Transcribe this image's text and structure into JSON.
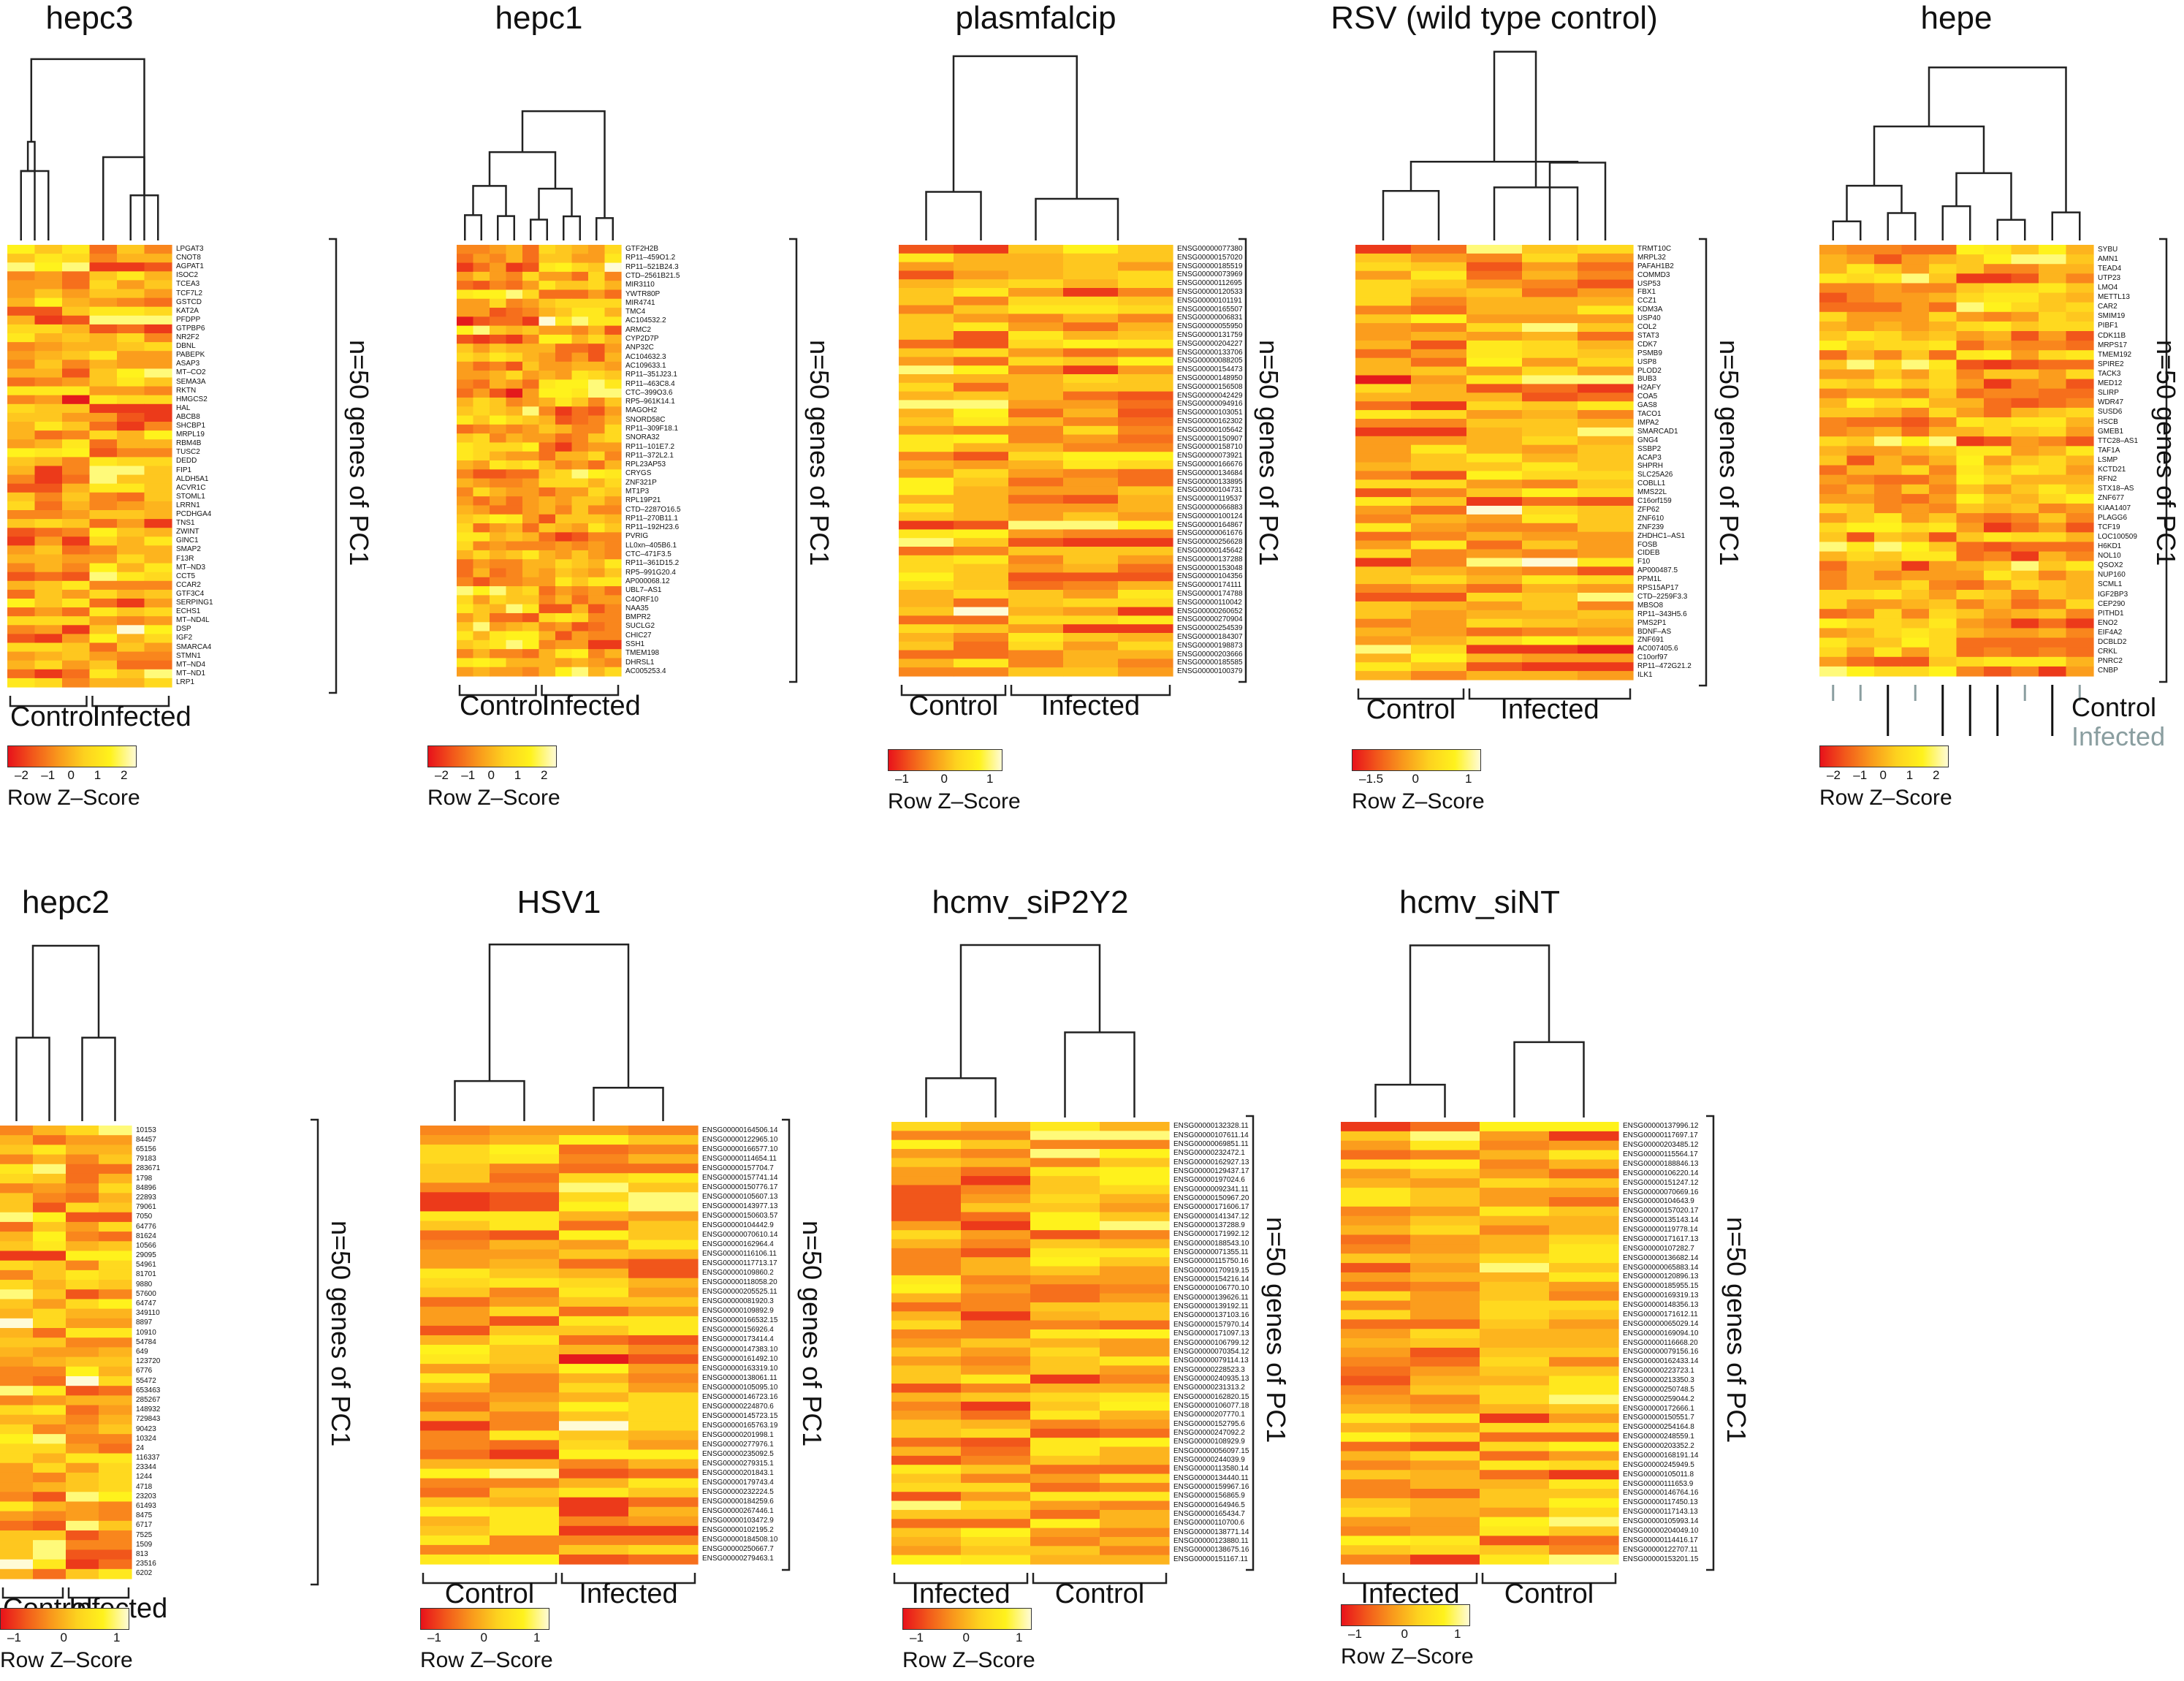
{
  "figure": {
    "legend_label": "Row Z–Score",
    "side_label": "n=50 genes of PC1"
  },
  "chart_data": [
    {
      "type": "heatmap",
      "title": "hepc3",
      "groups": [
        "Control",
        "Infected"
      ],
      "colorbar_ticks": [
        "–2",
        "–1",
        "0",
        "1",
        "2"
      ],
      "genes": [
        "LPGAT3",
        "CNOT8",
        "AGPAT1",
        "ISOC2",
        "TCEA3",
        "TCF7L2",
        "GSTCD",
        "KAT2A",
        "PFDPP",
        "GTPBP6",
        "NR2F2",
        "DBNL",
        "PABEPK",
        "ASAP3",
        "MT–CO2",
        "SEMA3A",
        "RKTN",
        "HMGCS2",
        "HAL",
        "ABCB8",
        "SHCBP1",
        "MRPL19",
        "RBM4B",
        "TUSC2",
        "DEDD",
        "FIP1",
        "ALDH5A1",
        "ACVR1C",
        "STOML1",
        "LRRN1",
        "PCDHGA4",
        "TNS1",
        "ZWINT",
        "GINC1",
        "SMAP2",
        "F13R",
        "MT–ND3",
        "CCT5",
        "CCAR2",
        "GTF3C4",
        "SERPING1",
        "ECHS1",
        "MT–ND4L",
        "DSP",
        "IGF2",
        "SMARCA4",
        "STMN1",
        "MT–ND4",
        "MT–ND1",
        "LRP1"
      ]
    },
    {
      "type": "heatmap",
      "title": "hepc1",
      "groups": [
        "Control",
        "Infected"
      ],
      "colorbar_ticks": [
        "–2",
        "–1",
        "0",
        "1",
        "2"
      ],
      "genes": [
        "GTF2H2B",
        "RP11–459O1.2",
        "RP11–521B24.3",
        "CTD–2561B21.5",
        "MIR3110",
        "YWTR80P",
        "MIR4741",
        "TMC4",
        "AC104532.2",
        "ARMC2",
        "CYP2D7P",
        "ANP32C",
        "AC104632.3",
        "AC109633.1",
        "RP11–351J23.1",
        "RP11–463C8.4",
        "CTC–399O3.6",
        "RP5–961K14.1",
        "MAGOH2",
        "SNORD58C",
        "RP11–309F18.1",
        "SNORA32",
        "RP11–101E7.2",
        "RP11–372L2.1",
        "RPL23AP53",
        "CRYGS",
        "ZNF321P",
        "MT1P3",
        "RPL19P21",
        "CTD–2287O16.5",
        "RP11–270B11.1",
        "RP11–192H23.6",
        "PVRIG",
        "LL0xn–405B6.1",
        "CTC–471F3.5",
        "RP11–361D15.2",
        "RP5–991G20.4",
        "AP000068.12",
        "UBL7–AS1",
        "C4ORF10",
        "NAA35",
        "BMPR2",
        "SUCLG2",
        "CHIC27",
        "SSH1",
        "TMEM198",
        "DHRSL1",
        "AC005253.4"
      ]
    },
    {
      "type": "heatmap",
      "title": "plasmfalcip",
      "groups": [
        "Control",
        "Infected"
      ],
      "colorbar_ticks": [
        "–1",
        "0",
        "1"
      ],
      "genes": [
        "ENSG00000077380",
        "ENSG00000157020",
        "ENSG00000185519",
        "ENSG00000073969",
        "ENSG00000112695",
        "ENSG00000120533",
        "ENSG00000101191",
        "ENSG00000165507",
        "ENSG00000006831",
        "ENSG00000055950",
        "ENSG00000131759",
        "ENSG00000204227",
        "ENSG00000133706",
        "ENSG00000088205",
        "ENSG00000154473",
        "ENSG00000148950",
        "ENSG00000156508",
        "ENSG00000042429",
        "ENSG00000094916",
        "ENSG00000103051",
        "ENSG00000162302",
        "ENSG00000105642",
        "ENSG00000150907",
        "ENSG00000158710",
        "ENSG00000073921",
        "ENSG00000166676",
        "ENSG00000134684",
        "ENSG00000133895",
        "ENSG00000104731",
        "ENSG00000119537",
        "ENSG00000066883",
        "ENSG00000100124",
        "ENSG00000164867",
        "ENSG00000061676",
        "ENSG00000256628",
        "ENSG00000145642",
        "ENSG00000137288",
        "ENSG00000153048",
        "ENSG00000104356",
        "ENSG00000174111",
        "ENSG00000174788",
        "ENSG00000110042",
        "ENSG00000260652",
        "ENSG00000270904",
        "ENSG00000254539",
        "ENSG00000184307",
        "ENSG00000198873",
        "ENSG00000203666",
        "ENSG00000185585",
        "ENSG00000100379"
      ]
    },
    {
      "type": "heatmap",
      "title": "RSV (wild type control)",
      "groups": [
        "Control",
        "Infected"
      ],
      "colorbar_ticks": [
        "–1.5",
        "0",
        "1"
      ],
      "genes": [
        "TRMT10C",
        "MRPL32",
        "PAFAH1B2",
        "COMMD3",
        "USP53",
        "FBX1",
        "CCZ1",
        "KDM3A",
        "USP40",
        "COL2",
        "STAT3",
        "CDK7",
        "PSMB9",
        "USP8",
        "PLOD2",
        "BUB3",
        "H2AFY",
        "COA5",
        "GAS8",
        "TACO1",
        "IMPA2",
        "SMARCAD1",
        "GNG4",
        "SSBP2",
        "ACAP3",
        "SHPRH",
        "SLC25A26",
        "COBLL1",
        "MMS22L",
        "C16orf159",
        "ZFP62",
        "ZNF610",
        "ZNF239",
        "ZHDHC1–AS1",
        "FOSB",
        "CIDEB",
        "F10",
        "AP000487.5",
        "PPM1L",
        "RPS15AP17",
        "CTD–2259F3.3",
        "MBSO8",
        "RP11–343H5.6",
        "PMS2P1",
        "BDNF–AS",
        "ZNF691",
        "AC007405.6",
        "C10orf97",
        "RP11–472G21.2",
        "ILK1"
      ]
    },
    {
      "type": "heatmap",
      "title": "hepe",
      "groups": [
        "Control",
        "Infected"
      ],
      "colorbar_ticks": [
        "–2",
        "–1",
        "0",
        "1",
        "2"
      ],
      "genes": [
        "SYBU",
        "AMN1",
        "TEAD4",
        "UTP23",
        "LMO4",
        "METTL13",
        "CAR2",
        "SMIM19",
        "PIBF1",
        "CDK11B",
        "MRPS17",
        "TMEM192",
        "SPIRE2",
        "TACK3",
        "MED12",
        "SLIRP",
        "WDR47",
        "SUSD6",
        "HSCB",
        "GMEB1",
        "TTC28–AS1",
        "TAF1A",
        "LSMP",
        "KCTD21",
        "RFN2",
        "STX18–AS",
        "ZNF677",
        "KIAA1407",
        "PLAGG6",
        "TCF19",
        "LOC100509",
        "H6KD1",
        "NOL10",
        "QSOX2",
        "NUP160",
        "SCML1",
        "IGF2BP3",
        "CEP290",
        "PITHD1",
        "ENO2",
        "EIF4A2",
        "DCBLD2",
        "CRKL",
        "PNRC2",
        "CNBP"
      ]
    },
    {
      "type": "heatmap",
      "title": "hepc2",
      "groups": [
        "Control",
        "Infected"
      ],
      "colorbar_ticks": [
        "–1",
        "0",
        "1"
      ],
      "genes": [
        "10153",
        "84457",
        "65156",
        "79183",
        "283671",
        "1798",
        "84896",
        "22893",
        "79061",
        "7050",
        "64776",
        "81624",
        "10566",
        "29095",
        "54961",
        "81701",
        "9880",
        "57600",
        "64747",
        "349110",
        "8897",
        "10910",
        "54784",
        "649",
        "123720",
        "6776",
        "55472",
        "653463",
        "285267",
        "148932",
        "729843",
        "90423",
        "10324",
        "24",
        "116337",
        "23344",
        "1244",
        "4718",
        "23203",
        "61493",
        "8475",
        "6717",
        "7525",
        "1509",
        "813",
        "23516",
        "6202"
      ]
    },
    {
      "type": "heatmap",
      "title": "HSV1",
      "groups": [
        "Control",
        "Infected"
      ],
      "colorbar_ticks": [
        "–1",
        "0",
        "1"
      ],
      "genes": [
        "ENSG00000164506.14",
        "ENSG00000122965.10",
        "ENSG00000166577.10",
        "ENSG00000114654.11",
        "ENSG00000157704.7",
        "ENSG00000157741.14",
        "ENSG00000150776.17",
        "ENSG00000105607.13",
        "ENSG00000143977.13",
        "ENSG00000150603.57",
        "ENSG00000104442.9",
        "ENSG00000070610.14",
        "ENSG00000162964.4",
        "ENSG00000116106.11",
        "ENSG00000117713.17",
        "ENSG00000109860.2",
        "ENSG00000118058.20",
        "ENSG00000205525.11",
        "ENSG00000081920.3",
        "ENSG00000109892.9",
        "ENSG00000166532.15",
        "ENSG00000156926.4",
        "ENSG00000173414.4",
        "ENSG00000147383.10",
        "ENSG00000161492.10",
        "ENSG00000163319.10",
        "ENSG00000138061.11",
        "ENSG00000105095.10",
        "ENSG00000146723.16",
        "ENSG00000224870.6",
        "ENSG00000145723.15",
        "ENSG00000165763.19",
        "ENSG00000201998.1",
        "ENSG00000277976.1",
        "ENSG00000235092.5",
        "ENSG00000279315.1",
        "ENSG00000201843.1",
        "ENSG00000179743.4",
        "ENSG00000232224.5",
        "ENSG00000184259.6",
        "ENSG00000267446.1",
        "ENSG00000103472.9",
        "ENSG00000102195.2",
        "ENSG00000184508.10",
        "ENSG00000250667.7",
        "ENSG00000279463.1"
      ]
    },
    {
      "type": "heatmap",
      "title": "hcmv_siP2Y2",
      "groups": [
        "Infected",
        "Control"
      ],
      "colorbar_ticks": [
        "–1",
        "0",
        "1"
      ],
      "genes": [
        "ENSG00000132328.11",
        "ENSG00000107611.14",
        "ENSG00000069851.11",
        "ENSG00000232472.1",
        "ENSG00000162927.13",
        "ENSG00000129437.17",
        "ENSG00000197024.6",
        "ENSG00000092341.11",
        "ENSG00000150967.20",
        "ENSG00000171606.17",
        "ENSG00000141347.12",
        "ENSG00000137288.9",
        "ENSG00000171992.12",
        "ENSG00000188543.10",
        "ENSG00000071355.11",
        "ENSG00000115750.16",
        "ENSG00000170919.15",
        "ENSG00000154216.14",
        "ENSG00000106770.10",
        "ENSG00000139626.11",
        "ENSG00000139192.11",
        "ENSG00000137103.16",
        "ENSG00000157970.14",
        "ENSG00000171097.13",
        "ENSG00000106799.12",
        "ENSG00000070354.12",
        "ENSG00000079114.13",
        "ENSG00000228523.3",
        "ENSG00000240935.13",
        "ENSG00000231313.2",
        "ENSG00000162820.15",
        "ENSG00000106077.18",
        "ENSG00000207770.1",
        "ENSG00000152795.6",
        "ENSG00000247092.2",
        "ENSG00000108929.9",
        "ENSG00000056097.15",
        "ENSG00000244039.9",
        "ENSG00000113580.14",
        "ENSG00000134440.11",
        "ENSG00000159967.16",
        "ENSG00000156865.9",
        "ENSG00000164946.5",
        "ENSG00000165434.7",
        "ENSG00000110700.6",
        "ENSG00000138771.14",
        "ENSG00000123880.11",
        "ENSG00000138675.16",
        "ENSG00000151167.11"
      ]
    },
    {
      "type": "heatmap",
      "title": "hcmv_siNT",
      "groups": [
        "Infected",
        "Control"
      ],
      "colorbar_ticks": [
        "–1",
        "0",
        "1"
      ],
      "genes": [
        "ENSG00000137996.12",
        "ENSG00000117697.17",
        "ENSG00000203485.12",
        "ENSG00000115564.17",
        "ENSG00000188846.13",
        "ENSG00000106220.14",
        "ENSG00000151247.12",
        "ENSG00000070669.16",
        "ENSG00000104643.9",
        "ENSG00000157020.17",
        "ENSG00000135143.14",
        "ENSG00000119778.14",
        "ENSG00000171617.13",
        "ENSG00000107282.7",
        "ENSG00000136682.14",
        "ENSG00000065883.14",
        "ENSG00000120896.13",
        "ENSG00000185955.15",
        "ENSG00000169319.13",
        "ENSG00000148356.13",
        "ENSG00000171612.11",
        "ENSG00000065029.14",
        "ENSG00000169094.10",
        "ENSG00000116668.20",
        "ENSG00000079156.16",
        "ENSG00000162433.14",
        "ENSG00000223723.1",
        "ENSG00000213350.3",
        "ENSG00000250748.5",
        "ENSG00000259044.2",
        "ENSG00000172666.1",
        "ENSG00000150551.7",
        "ENSG00000254164.8",
        "ENSG00000248559.1",
        "ENSG00000203352.2",
        "ENSG00000168191.14",
        "ENSG00000245949.5",
        "ENSG00000105011.8",
        "ENSG00000111653.9",
        "ENSG00000146764.16",
        "ENSG00000117450.13",
        "ENSG00000117143.13",
        "ENSG00000105993.14",
        "ENSG00000204049.10",
        "ENSG00000114416.17",
        "ENSG00000122707.11",
        "ENSG00000153201.15"
      ]
    }
  ]
}
